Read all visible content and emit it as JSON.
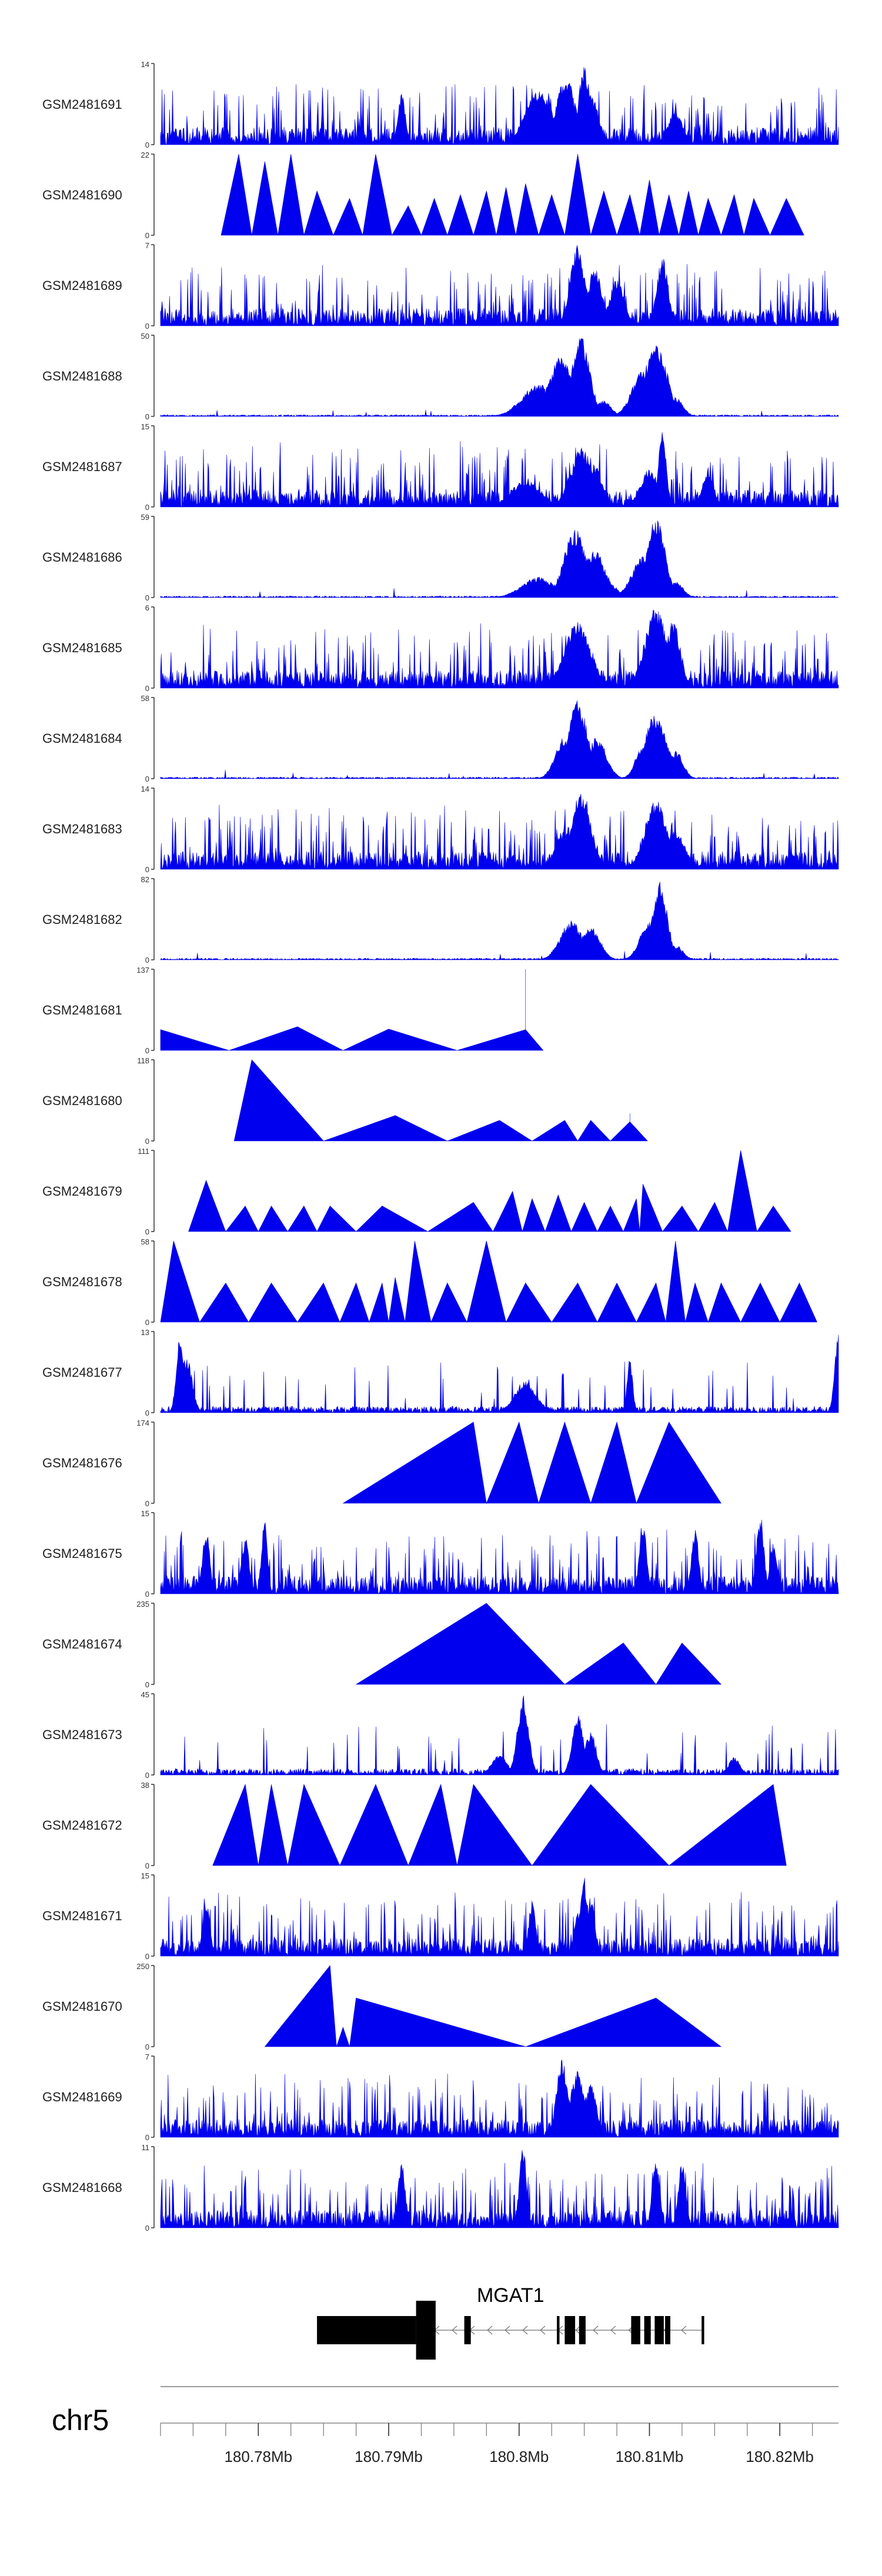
{
  "chart_data": {
    "type": "area",
    "title": "",
    "chromosome": "chr5",
    "xlabel": "",
    "xlim_mb": [
      180.7725,
      180.8245
    ],
    "x_ticks_mb": [
      180.78,
      180.79,
      180.8,
      180.81,
      180.82
    ],
    "x_tick_labels": [
      "180.78Mb",
      "180.79Mb",
      "180.8Mb",
      "180.81Mb",
      "180.82Mb"
    ],
    "fill_color": "#0000ee",
    "gene": {
      "name": "MGAT1",
      "strand": "-",
      "start_mb": 180.7845,
      "end_mb": 180.8142,
      "exons_mb": [
        [
          180.7845,
          180.7921
        ],
        [
          180.7921,
          180.7936
        ],
        [
          180.7958,
          180.7963
        ],
        [
          180.8029,
          180.8031
        ],
        [
          180.8035,
          180.8043
        ],
        [
          180.8046,
          180.8051
        ],
        [
          180.8086,
          180.8093
        ],
        [
          180.8096,
          180.8101
        ],
        [
          180.8104,
          180.8111
        ],
        [
          180.8112,
          180.8116
        ],
        [
          180.814,
          180.8142
        ]
      ]
    },
    "tracks": [
      {
        "name": "GSM2481691",
        "ymax": 14,
        "style": "dense",
        "peaks": [
          [
            180.8015,
            10,
            0.0014
          ],
          [
            180.8036,
            12,
            0.001
          ],
          [
            180.805,
            14,
            0.0006
          ],
          [
            180.8055,
            9,
            0.0008
          ],
          [
            180.791,
            9,
            0.0004
          ],
          [
            180.812,
            6,
            0.0008
          ]
        ]
      },
      {
        "name": "GSM2481690",
        "ymax": 22,
        "style": "triangles",
        "peaks": [
          [
            180.7785,
            22
          ],
          [
            180.7805,
            20
          ],
          [
            180.7825,
            22
          ],
          [
            180.7845,
            12
          ],
          [
            180.787,
            10
          ],
          [
            180.789,
            22
          ],
          [
            180.7915,
            8
          ],
          [
            180.7935,
            10
          ],
          [
            180.7955,
            11
          ],
          [
            180.7975,
            12
          ],
          [
            180.799,
            13
          ],
          [
            180.8005,
            14
          ],
          [
            180.8025,
            11
          ],
          [
            180.8045,
            22
          ],
          [
            180.8065,
            12
          ],
          [
            180.8085,
            11
          ],
          [
            180.81,
            15
          ],
          [
            180.8115,
            11
          ],
          [
            180.813,
            12
          ],
          [
            180.8145,
            10
          ],
          [
            180.8165,
            11
          ],
          [
            180.818,
            10
          ],
          [
            180.8205,
            10
          ]
        ]
      },
      {
        "name": "GSM2481689",
        "ymax": 7,
        "style": "dense",
        "peaks": [
          [
            180.8045,
            7,
            0.0008
          ],
          [
            180.8058,
            5,
            0.0008
          ],
          [
            180.8075,
            4,
            0.0008
          ],
          [
            180.811,
            6,
            0.0006
          ]
        ]
      },
      {
        "name": "GSM2481688",
        "ymax": 50,
        "style": "peaks",
        "peaks": [
          [
            180.8015,
            20,
            0.0018
          ],
          [
            180.8033,
            38,
            0.0014
          ],
          [
            180.8047,
            50,
            0.001
          ],
          [
            180.8065,
            10,
            0.0008
          ],
          [
            180.8105,
            46,
            0.0012
          ],
          [
            180.8095,
            28,
            0.0012
          ],
          [
            180.812,
            12,
            0.0008
          ]
        ]
      },
      {
        "name": "GSM2481687",
        "ymax": 15,
        "style": "dense",
        "peaks": [
          [
            180.8005,
            5,
            0.0016
          ],
          [
            180.8048,
            11,
            0.0012
          ],
          [
            180.8058,
            8,
            0.0008
          ],
          [
            180.811,
            15,
            0.0004
          ],
          [
            180.81,
            7,
            0.001
          ],
          [
            180.8145,
            7,
            0.0006
          ]
        ]
      },
      {
        "name": "GSM2481686",
        "ymax": 59,
        "style": "peaks",
        "peaks": [
          [
            180.8015,
            15,
            0.0018
          ],
          [
            180.8043,
            50,
            0.0012
          ],
          [
            180.8058,
            34,
            0.0012
          ],
          [
            180.807,
            10,
            0.0008
          ],
          [
            180.8105,
            58,
            0.001
          ],
          [
            180.8095,
            30,
            0.0012
          ],
          [
            180.812,
            12,
            0.0008
          ]
        ]
      },
      {
        "name": "GSM2481685",
        "ymax": 6,
        "style": "dense",
        "peaks": [
          [
            180.8045,
            5,
            0.0014
          ],
          [
            180.8105,
            6,
            0.0012
          ],
          [
            180.8118,
            5,
            0.0008
          ]
        ]
      },
      {
        "name": "GSM2481684",
        "ymax": 58,
        "style": "peaks",
        "peaks": [
          [
            180.8045,
            58,
            0.001
          ],
          [
            180.8035,
            30,
            0.001
          ],
          [
            180.806,
            30,
            0.001
          ],
          [
            180.8105,
            48,
            0.0012
          ],
          [
            180.812,
            20,
            0.0008
          ],
          [
            180.8095,
            25,
            0.0008
          ]
        ]
      },
      {
        "name": "GSM2481683",
        "ymax": 14,
        "style": "dense",
        "peaks": [
          [
            180.8048,
            14,
            0.001
          ],
          [
            180.8035,
            7,
            0.001
          ],
          [
            180.8105,
            12,
            0.0012
          ],
          [
            180.812,
            7,
            0.001
          ]
        ]
      },
      {
        "name": "GSM2481682",
        "ymax": 82,
        "style": "peaks",
        "peaks": [
          [
            180.804,
            40,
            0.0012
          ],
          [
            180.8055,
            35,
            0.001
          ],
          [
            180.8108,
            80,
            0.0008
          ],
          [
            180.81,
            40,
            0.001
          ],
          [
            180.812,
            15,
            0.0008
          ]
        ]
      },
      {
        "name": "GSM2481681",
        "ymax": 137,
        "style": "triangles",
        "peaks": [
          [
            180.7725,
            35
          ],
          [
            180.783,
            40
          ],
          [
            180.79,
            36
          ],
          [
            180.8005,
            35
          ],
          [
            180.8005,
            137
          ],
          [
            180.8005,
            35
          ]
        ]
      },
      {
        "name": "GSM2481680",
        "ymax": 118,
        "style": "triangles",
        "peaks": [
          [
            180.7795,
            118
          ],
          [
            180.7905,
            37
          ],
          [
            180.7985,
            30
          ],
          [
            180.8035,
            30
          ],
          [
            180.8055,
            30
          ],
          [
            180.8085,
            28
          ],
          [
            180.8085,
            40
          ],
          [
            180.8085,
            28
          ]
        ]
      },
      {
        "name": "GSM2481679",
        "ymax": 111,
        "style": "triangles",
        "peaks": [
          [
            180.776,
            70
          ],
          [
            180.779,
            35
          ],
          [
            180.781,
            35
          ],
          [
            180.7835,
            35
          ],
          [
            180.7855,
            35
          ],
          [
            180.7895,
            35
          ],
          [
            180.7965,
            40
          ],
          [
            180.7995,
            55
          ],
          [
            180.801,
            45
          ],
          [
            180.803,
            50
          ],
          [
            180.805,
            40
          ],
          [
            180.807,
            35
          ],
          [
            180.809,
            45
          ],
          [
            180.8095,
            65
          ],
          [
            180.8125,
            35
          ],
          [
            180.815,
            40
          ],
          [
            180.817,
            111
          ],
          [
            180.8195,
            35
          ]
        ]
      },
      {
        "name": "GSM2481678",
        "ymax": 58,
        "style": "triangles",
        "peaks": [
          [
            180.7735,
            58
          ],
          [
            180.7775,
            28
          ],
          [
            180.781,
            28
          ],
          [
            180.785,
            28
          ],
          [
            180.7875,
            28
          ],
          [
            180.7895,
            28
          ],
          [
            180.7905,
            32
          ],
          [
            180.792,
            58
          ],
          [
            180.7945,
            28
          ],
          [
            180.7975,
            58
          ],
          [
            180.8005,
            28
          ],
          [
            180.8045,
            28
          ],
          [
            180.8075,
            28
          ],
          [
            180.8105,
            28
          ],
          [
            180.812,
            58
          ],
          [
            180.8135,
            28
          ],
          [
            180.8155,
            28
          ],
          [
            180.8185,
            28
          ],
          [
            180.8215,
            28
          ]
        ]
      },
      {
        "name": "GSM2481677",
        "ymax": 13,
        "style": "sparse",
        "peaks": [
          [
            180.774,
            13,
            0.0004
          ],
          [
            180.7745,
            9,
            0.0006
          ],
          [
            180.8005,
            5,
            0.0012
          ],
          [
            180.8085,
            9,
            0.0003
          ],
          [
            180.8245,
            13,
            0.0004
          ]
        ]
      },
      {
        "name": "GSM2481676",
        "ymax": 174,
        "style": "triangles",
        "peaks": [
          [
            180.7865,
            0
          ],
          [
            180.7965,
            174
          ],
          [
            180.7975,
            0
          ],
          [
            180.8,
            174
          ],
          [
            180.8015,
            0
          ],
          [
            180.8035,
            174
          ],
          [
            180.8055,
            0
          ],
          [
            180.8075,
            174
          ],
          [
            180.809,
            0
          ],
          [
            180.8115,
            174
          ],
          [
            180.8155,
            0
          ]
        ]
      },
      {
        "name": "GSM2481675",
        "ymax": 15,
        "style": "dense",
        "peaks": [
          [
            180.776,
            12,
            0.0004
          ],
          [
            180.779,
            11,
            0.0004
          ],
          [
            180.7805,
            15,
            0.0003
          ],
          [
            180.8095,
            14,
            0.0004
          ],
          [
            180.8135,
            12,
            0.0004
          ],
          [
            180.8185,
            15,
            0.0004
          ],
          [
            180.8195,
            10,
            0.0004
          ]
        ]
      },
      {
        "name": "GSM2481674",
        "ymax": 235,
        "style": "triangles",
        "peaks": [
          [
            180.7875,
            0
          ],
          [
            180.7975,
            235
          ],
          [
            180.8035,
            0
          ],
          [
            180.808,
            120
          ],
          [
            180.8105,
            0
          ],
          [
            180.8125,
            120
          ],
          [
            180.8155,
            0
          ]
        ]
      },
      {
        "name": "GSM2481673",
        "ymax": 45,
        "style": "sparse",
        "peaks": [
          [
            180.8003,
            45,
            0.0006
          ],
          [
            180.8045,
            35,
            0.0006
          ],
          [
            180.8055,
            25,
            0.0006
          ],
          [
            180.7985,
            12,
            0.0008
          ],
          [
            180.8165,
            10,
            0.0006
          ]
        ]
      },
      {
        "name": "GSM2481672",
        "ymax": 38,
        "style": "triangles",
        "peaks": [
          [
            180.7765,
            0
          ],
          [
            180.779,
            38
          ],
          [
            180.781,
            38
          ],
          [
            180.7835,
            38
          ],
          [
            180.789,
            38
          ],
          [
            180.794,
            38
          ],
          [
            180.7965,
            38
          ],
          [
            180.8055,
            38
          ],
          [
            180.8115,
            0
          ],
          [
            180.8195,
            38
          ],
          [
            180.8205,
            0
          ]
        ]
      },
      {
        "name": "GSM2481671",
        "ymax": 15,
        "style": "dense",
        "peaks": [
          [
            180.805,
            15,
            0.0004
          ],
          [
            180.8045,
            9,
            0.0004
          ],
          [
            180.801,
            10,
            0.0004
          ],
          [
            180.8055,
            11,
            0.0004
          ],
          [
            180.776,
            10,
            0.0004
          ]
        ]
      },
      {
        "name": "GSM2481670",
        "ymax": 250,
        "style": "triangles",
        "peaks": [
          [
            180.7805,
            0
          ],
          [
            180.7855,
            250
          ],
          [
            180.7865,
            60
          ],
          [
            180.7875,
            150
          ],
          [
            180.8005,
            0
          ],
          [
            180.8105,
            150
          ],
          [
            180.8155,
            0
          ]
        ]
      },
      {
        "name": "GSM2481669",
        "ymax": 7,
        "style": "dense",
        "peaks": [
          [
            180.8033,
            7,
            0.0006
          ],
          [
            180.8045,
            6,
            0.0008
          ],
          [
            180.8055,
            5,
            0.0006
          ]
        ]
      },
      {
        "name": "GSM2481668",
        "ymax": 11,
        "style": "dense",
        "peaks": [
          [
            180.8003,
            11,
            0.0004
          ],
          [
            180.791,
            9,
            0.0004
          ],
          [
            180.8105,
            10,
            0.0004
          ],
          [
            180.8125,
            9,
            0.0004
          ]
        ]
      }
    ]
  }
}
